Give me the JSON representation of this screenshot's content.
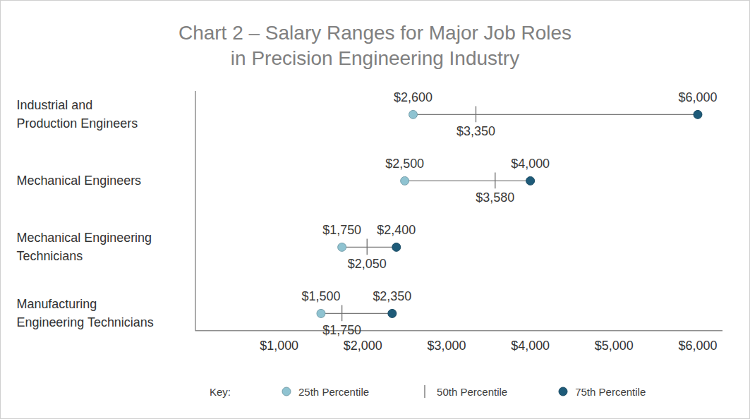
{
  "chart_data": {
    "type": "range",
    "title": "Chart 2 – Salary Ranges for Major Job Roles in Precision Engineering Industry",
    "orientation": "horizontal",
    "categories": [
      "Industrial and Production Engineers",
      "Mechanical Engineers",
      "Mechanical Engineering Technicians",
      "Manufacturing Engineering Technicians"
    ],
    "series": [
      {
        "name": "25th Percentile",
        "color": "#8fc3d1",
        "marker": "circle",
        "values": [
          2600,
          2500,
          1750,
          1500
        ],
        "value_labels": [
          "$2,600",
          "$2,500",
          "$1,750",
          "$1,500"
        ]
      },
      {
        "name": "50th Percentile",
        "color": "#6e6e6e",
        "marker": "tick",
        "values": [
          3350,
          3580,
          2050,
          1750
        ],
        "value_labels": [
          "$3,350",
          "$3,580",
          "$2,050",
          "$1,750"
        ]
      },
      {
        "name": "75th Percentile",
        "color": "#1e5b79",
        "marker": "circle",
        "values": [
          6000,
          4000,
          2400,
          2350
        ],
        "value_labels": [
          "$6,000",
          "$4,000",
          "$2,400",
          "$2,350"
        ]
      }
    ],
    "xlim": [
      0,
      6300
    ],
    "xticks": [
      {
        "value": 1000,
        "label": "$1,000"
      },
      {
        "value": 2000,
        "label": "$2,000"
      },
      {
        "value": 3000,
        "label": "$3,000"
      },
      {
        "value": 4000,
        "label": "$4,000"
      },
      {
        "value": 5000,
        "label": "$5,000"
      },
      {
        "value": 6000,
        "label": "$6,000"
      }
    ],
    "data_labels": true,
    "grid": false,
    "legend": "bottom",
    "legend_title": "Key:"
  }
}
